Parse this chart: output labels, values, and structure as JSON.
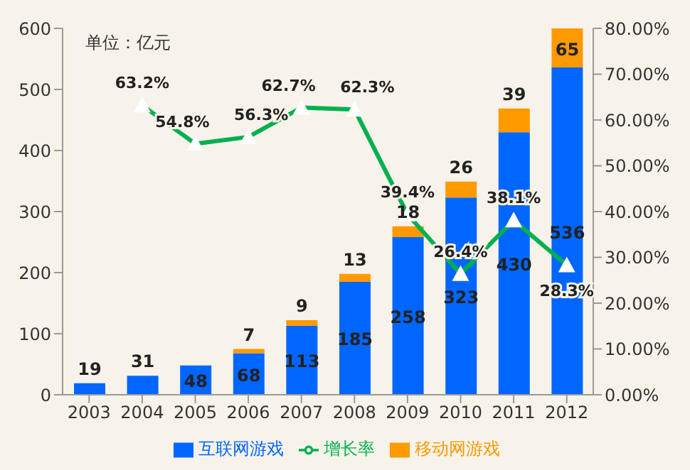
{
  "chart_data": {
    "type": "bar",
    "stacked": true,
    "annotations": [
      "单位：亿元"
    ],
    "categories": [
      "2003",
      "2004",
      "2005",
      "2006",
      "2007",
      "2008",
      "2009",
      "2010",
      "2011",
      "2012"
    ],
    "series": [
      {
        "name": "互联网游戏",
        "color": "#0066ff",
        "values": [
          19,
          31,
          48,
          68,
          113,
          185,
          258,
          323,
          430,
          536
        ]
      },
      {
        "name": "移动网游戏",
        "color": "#ff9900",
        "values": [
          null,
          null,
          null,
          7,
          9,
          13,
          18,
          26,
          39,
          65
        ]
      },
      {
        "name": "增长率",
        "type": "line",
        "axis": "y2",
        "color": "#00b050",
        "marker": "triangle",
        "line_style": "solid",
        "values": [
          null,
          63.2,
          54.8,
          56.3,
          62.7,
          62.3,
          39.4,
          26.4,
          38.1,
          28.3
        ],
        "value_labels": [
          null,
          "63.2%",
          "54.8%",
          "56.3%",
          "62.7%",
          "62.3%",
          "39.4%",
          "26.4%",
          "38.1%",
          "28.3%"
        ]
      }
    ],
    "data_labels": true,
    "ylim": [
      0,
      600
    ],
    "yticks": [
      0,
      100,
      200,
      300,
      400,
      500,
      600
    ],
    "y2lim": [
      0,
      80
    ],
    "y2ticks": [
      {
        "value": 0,
        "label": "0.00%"
      },
      {
        "value": 10,
        "label": "10.00%"
      },
      {
        "value": 20,
        "label": "20.00%"
      },
      {
        "value": 30,
        "label": "30.00%"
      },
      {
        "value": 40,
        "label": "40.00%"
      },
      {
        "value": 50,
        "label": "50.00%"
      },
      {
        "value": 60,
        "label": "60.00%"
      },
      {
        "value": 70,
        "label": "70.00%"
      },
      {
        "value": 80,
        "label": "80.00%"
      }
    ],
    "grid": false,
    "legend": "bottom"
  }
}
